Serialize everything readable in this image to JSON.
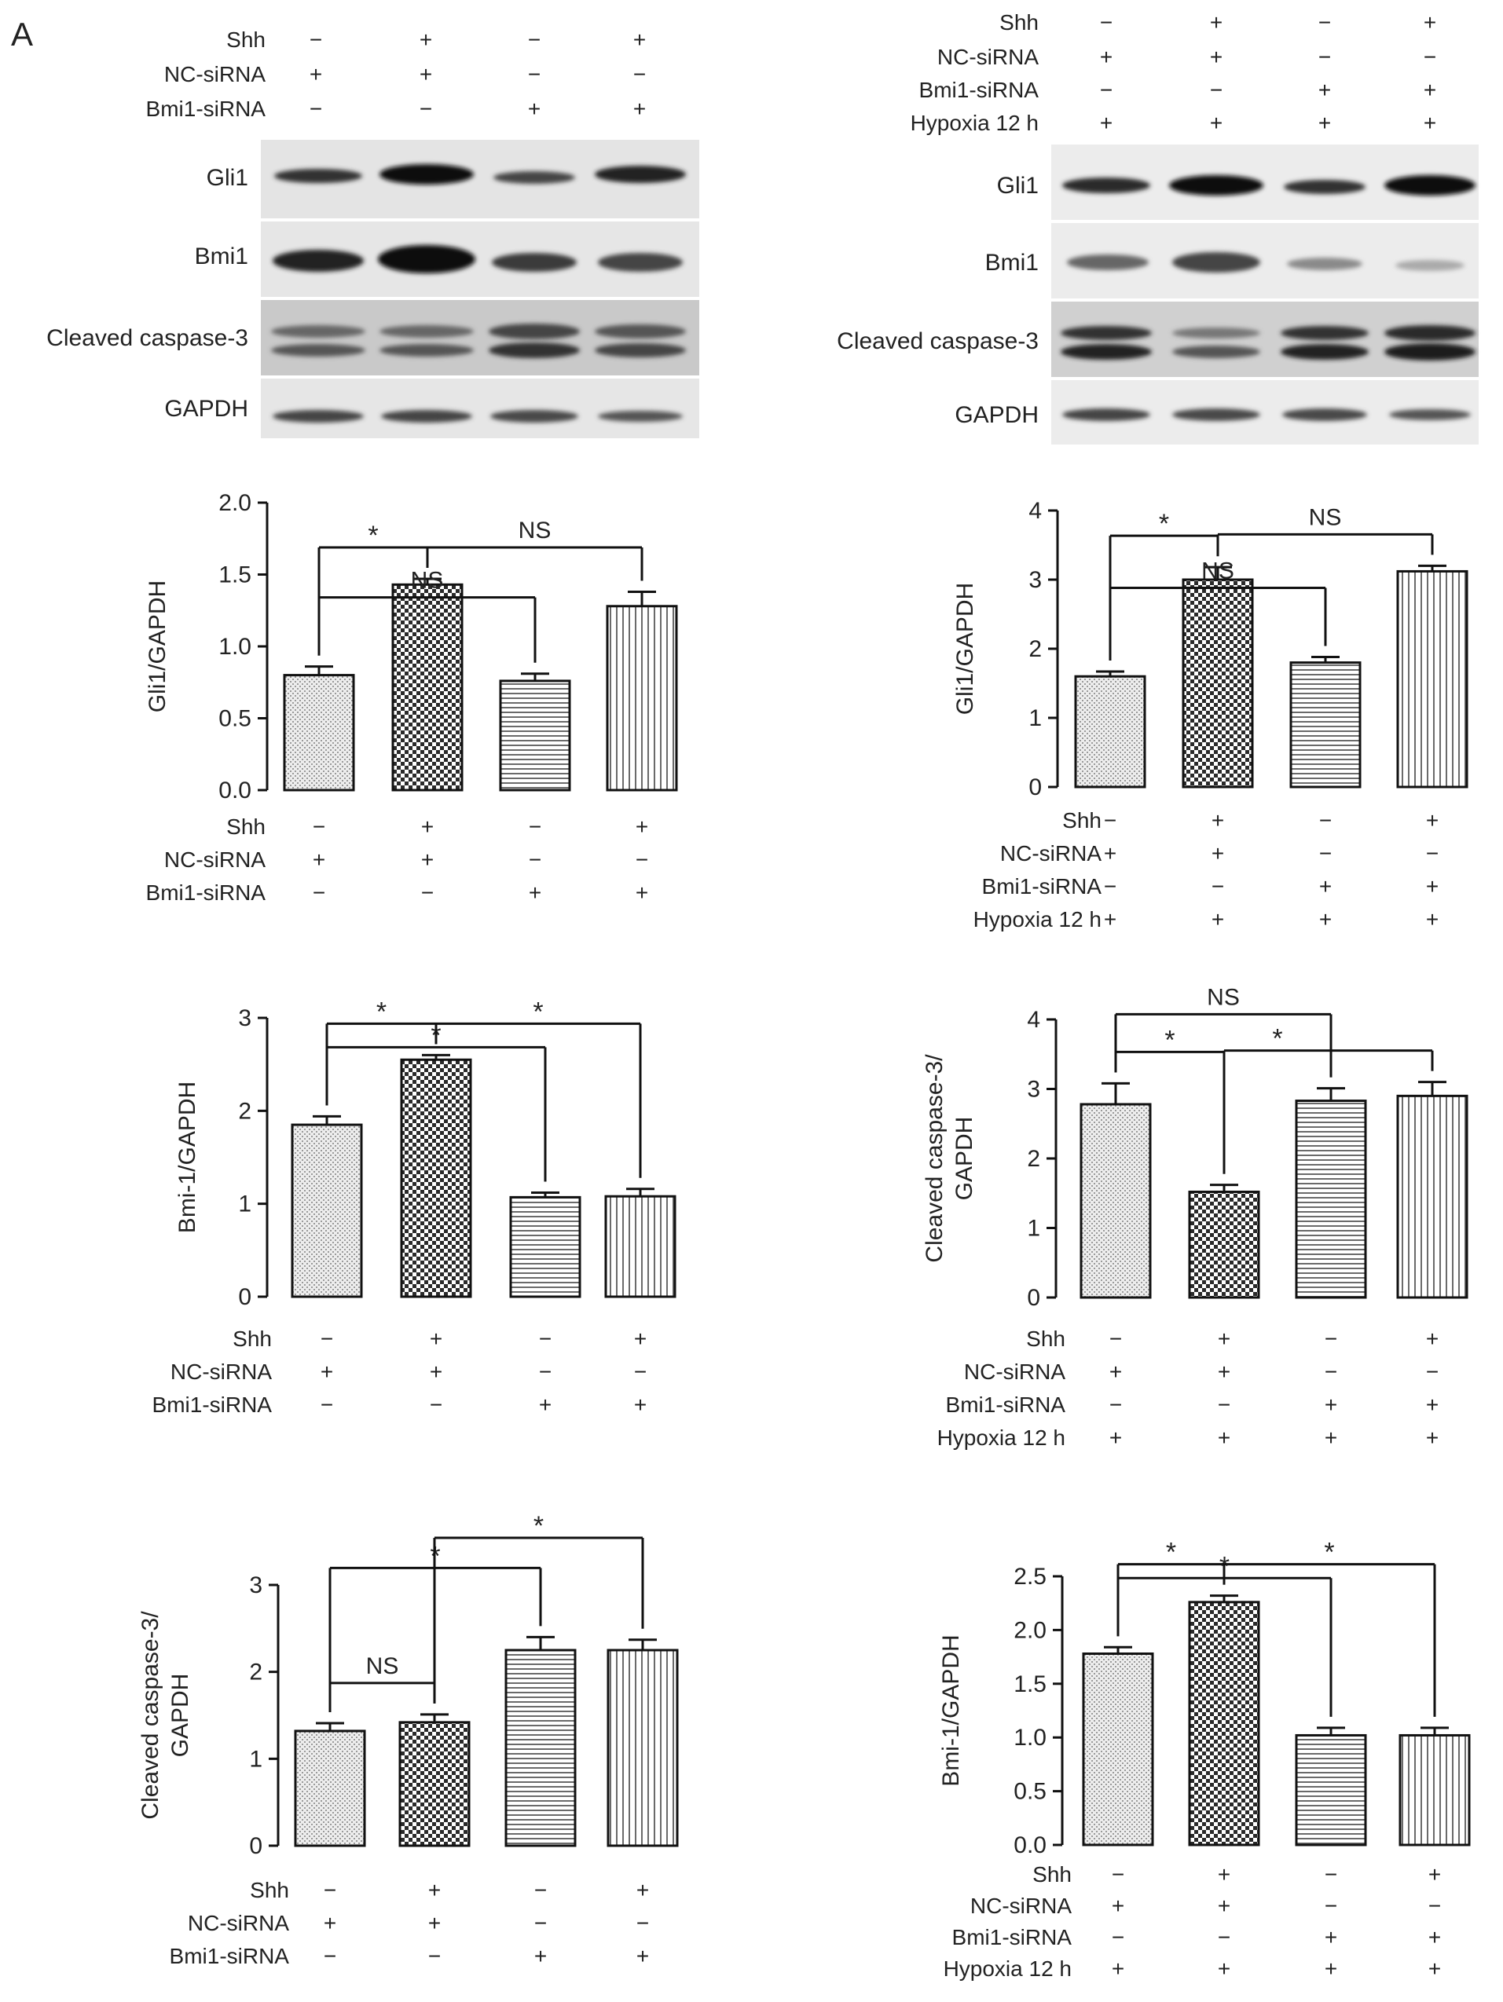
{
  "panel_label": "A",
  "left_column": {
    "condition_rows": [
      {
        "label": "Shh",
        "signs": [
          "−",
          "+",
          "−",
          "+"
        ]
      },
      {
        "label": "NC-siRNA",
        "signs": [
          "+",
          "+",
          "−",
          "−"
        ]
      },
      {
        "label": "Bmi1-siRNA",
        "signs": [
          "−",
          "−",
          "+",
          "+"
        ]
      }
    ],
    "blot_labels": [
      "Gli1",
      "Bmi1",
      "Cleaved caspase-3",
      "GAPDH"
    ]
  },
  "right_column": {
    "condition_rows": [
      {
        "label": "Shh",
        "signs": [
          "−",
          "+",
          "−",
          "+"
        ]
      },
      {
        "label": "NC-siRNA",
        "signs": [
          "+",
          "+",
          "−",
          "−"
        ]
      },
      {
        "label": "Bmi1-siRNA",
        "signs": [
          "−",
          "−",
          "+",
          "+"
        ]
      },
      {
        "label": "Hypoxia 12 h",
        "signs": [
          "+",
          "+",
          "+",
          "+"
        ]
      }
    ],
    "blot_labels": [
      "Gli1",
      "Bmi1",
      "Cleaved caspase-3",
      "GAPDH"
    ]
  },
  "chart_data": [
    {
      "type": "bar",
      "id": "left-gli1",
      "ylabel": [
        "Gli1/GAPDH"
      ],
      "ylim": [
        0,
        2.0
      ],
      "yticks": [
        "0.0",
        "0.5",
        "1.0",
        "1.5",
        "2.0"
      ],
      "values": [
        0.8,
        1.43,
        0.76,
        1.28
      ],
      "errors": [
        0.06,
        0.04,
        0.05,
        0.1
      ],
      "conditions": "left",
      "brackets": [
        {
          "from": 0,
          "to": [
            2
          ],
          "label": "NS",
          "level": 2
        },
        {
          "from": 0,
          "to": [
            1
          ],
          "label": "*",
          "level": 1
        },
        {
          "from": 1,
          "to": [
            3
          ],
          "label": "NS",
          "level": 1
        }
      ]
    },
    {
      "type": "bar",
      "id": "right-gli1",
      "ylabel": [
        "Gli1/GAPDH"
      ],
      "ylim": [
        0,
        4
      ],
      "yticks": [
        "0",
        "1",
        "2",
        "3",
        "4"
      ],
      "values": [
        1.6,
        3.0,
        1.8,
        3.12
      ],
      "errors": [
        0.07,
        0.18,
        0.08,
        0.08
      ],
      "conditions": "right",
      "brackets": [
        {
          "from": 0,
          "to": [
            2
          ],
          "label": "NS",
          "level": 2
        },
        {
          "from": 0,
          "to": [
            1
          ],
          "label": "*",
          "level": 1
        },
        {
          "from": 1,
          "to": [
            3
          ],
          "label": "NS",
          "level": 1
        }
      ]
    },
    {
      "type": "bar",
      "id": "left-bmi1",
      "ylabel": [
        "Bmi-1/GAPDH"
      ],
      "ylim": [
        0,
        3
      ],
      "yticks": [
        "0",
        "1",
        "2",
        "3"
      ],
      "values": [
        1.85,
        2.55,
        1.07,
        1.08
      ],
      "errors": [
        0.09,
        0.05,
        0.05,
        0.08
      ],
      "conditions": "left",
      "brackets": [
        {
          "from": 0,
          "to": [
            2
          ],
          "label": "*",
          "level": 2
        },
        {
          "from": 0,
          "to": [
            1
          ],
          "label": "*",
          "level": 1
        },
        {
          "from": 1,
          "to": [
            3
          ],
          "label": "*",
          "level": 1
        }
      ]
    },
    {
      "type": "bar",
      "id": "right-casp3",
      "ylabel": [
        "Cleaved caspase-3/",
        "GAPDH"
      ],
      "ylim": [
        0,
        4
      ],
      "yticks": [
        "0",
        "1",
        "2",
        "3",
        "4"
      ],
      "values": [
        2.78,
        1.52,
        2.83,
        2.9
      ],
      "errors": [
        0.3,
        0.1,
        0.18,
        0.2
      ],
      "conditions": "right",
      "brackets": [
        {
          "from": 0,
          "to": [
            2
          ],
          "label": "NS",
          "level": 2
        },
        {
          "from": 0,
          "to": [
            1
          ],
          "label": "*",
          "level": 1
        },
        {
          "from": 1,
          "to": [
            2,
            3
          ],
          "label": "*",
          "level": 1
        }
      ]
    },
    {
      "type": "bar",
      "id": "left-casp3",
      "ylabel": [
        "Cleaved caspase-3/",
        "GAPDH"
      ],
      "ylim": [
        0,
        3
      ],
      "yticks": [
        "0",
        "1",
        "2",
        "3"
      ],
      "values": [
        1.32,
        1.42,
        2.25,
        2.25
      ],
      "errors": [
        0.09,
        0.09,
        0.15,
        0.12
      ],
      "conditions": "left",
      "brackets": [
        {
          "from": 0,
          "to": [
            1
          ],
          "label": "NS",
          "level": 1
        },
        {
          "from": 0,
          "to": [
            2
          ],
          "label": "*",
          "level": 2
        },
        {
          "from": 1,
          "to": [
            3
          ],
          "label": "*",
          "level": 3
        }
      ]
    },
    {
      "type": "bar",
      "id": "right-bmi1",
      "ylabel": [
        "Bmi-1/GAPDH"
      ],
      "ylim": [
        0,
        2.5
      ],
      "yticks": [
        "0.0",
        "0.5",
        "1.0",
        "1.5",
        "2.0",
        "2.5"
      ],
      "values": [
        1.78,
        2.26,
        1.02,
        1.02
      ],
      "errors": [
        0.06,
        0.06,
        0.07,
        0.07
      ],
      "conditions": "right",
      "brackets": [
        {
          "from": 0,
          "to": [
            2
          ],
          "label": "*",
          "level": 2
        },
        {
          "from": 0,
          "to": [
            1
          ],
          "label": "*",
          "level": 1
        },
        {
          "from": 1,
          "to": [
            3
          ],
          "label": "*",
          "level": 1
        }
      ]
    }
  ]
}
